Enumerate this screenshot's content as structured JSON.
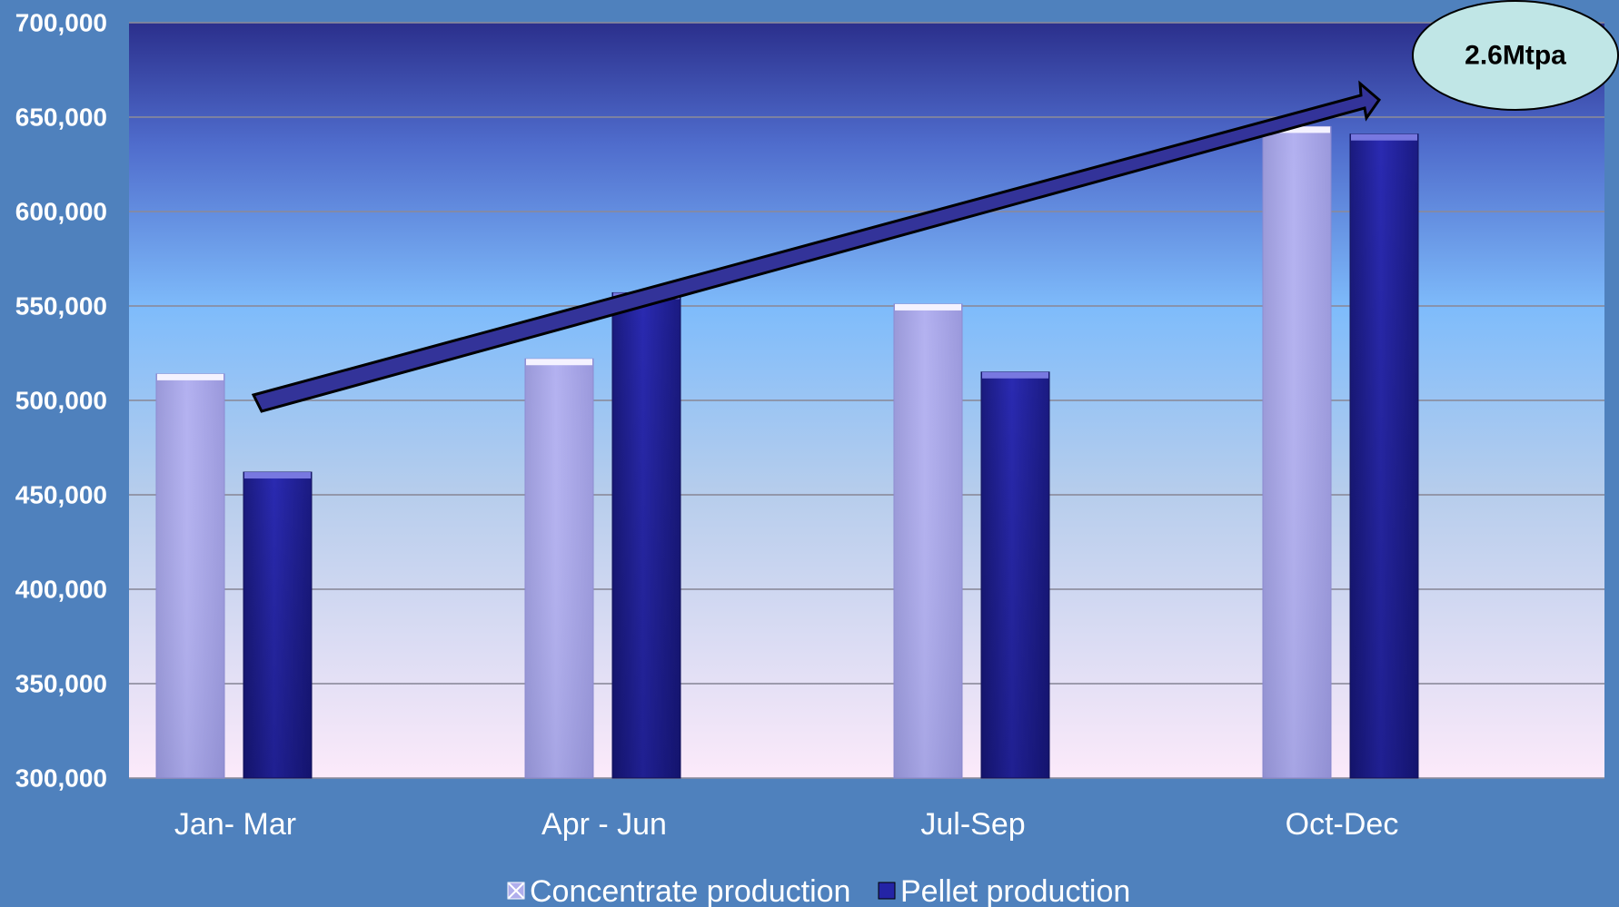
{
  "chart_data": {
    "type": "bar",
    "categories": [
      "Jan- Mar",
      "Apr - Jun",
      "Jul-Sep",
      "Oct-Dec"
    ],
    "series": [
      {
        "name": "Concentrate production",
        "values": [
          514000,
          522000,
          551000,
          645000
        ]
      },
      {
        "name": "Pellet production",
        "values": [
          462000,
          557000,
          515000,
          641000
        ]
      }
    ],
    "ylim": [
      300000,
      700000
    ],
    "yticks": [
      "300,000",
      "350,000",
      "400,000",
      "450,000",
      "500,000",
      "550,000",
      "600,000",
      "650,000",
      "700,000"
    ],
    "grid": true,
    "legend": "bottom",
    "annotation": {
      "text": "2.6Mtpa",
      "shape": "ellipse",
      "arrow": "upward-trend"
    },
    "colors": {
      "concentrate": "#b0aeec",
      "pellet": "#2424a6",
      "background": "#4f81bd",
      "callout_fill": "#c0e6e6"
    }
  }
}
